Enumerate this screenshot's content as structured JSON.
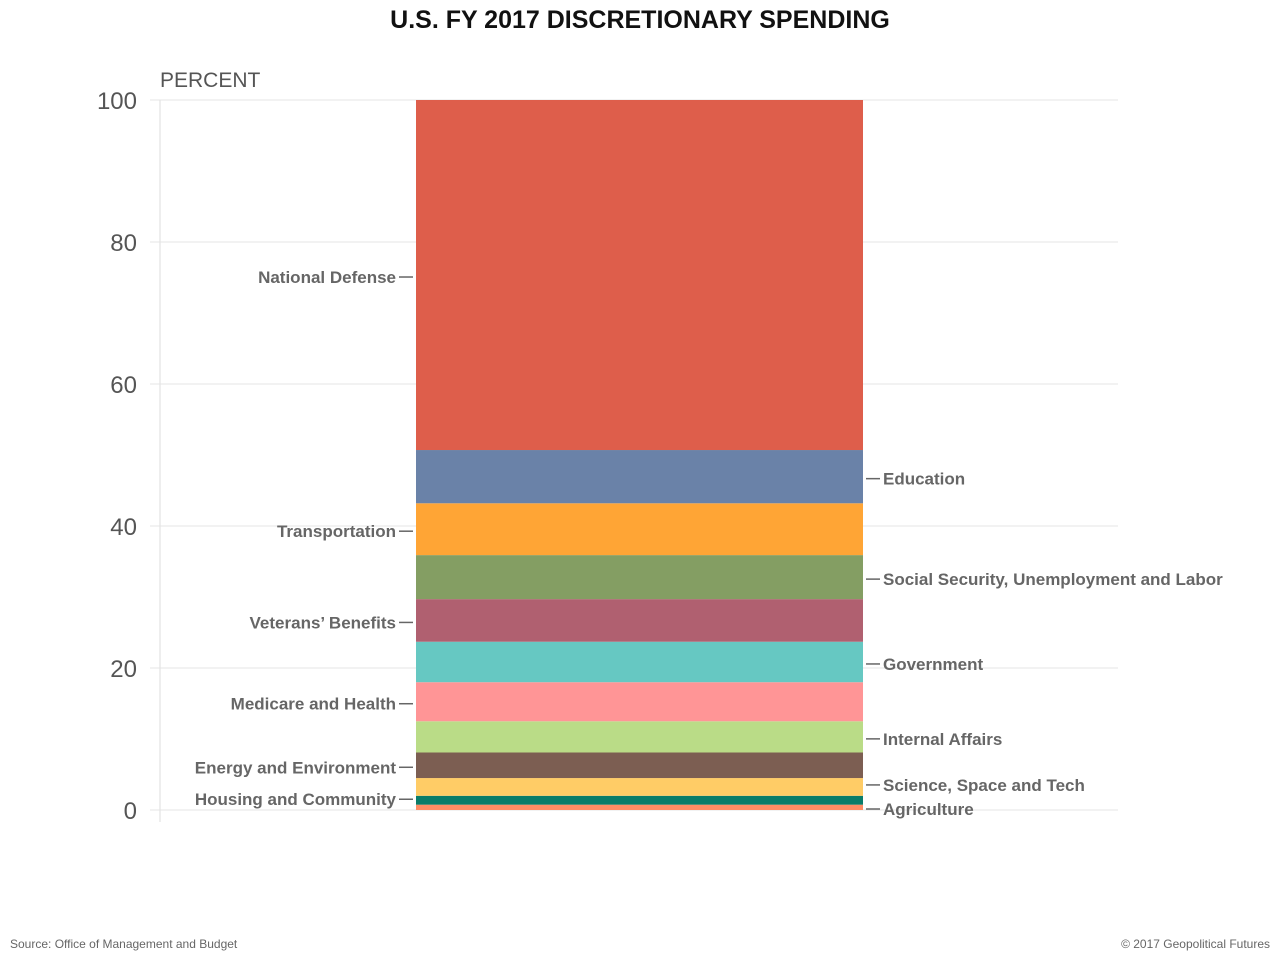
{
  "chart_data": {
    "type": "bar",
    "stacked": true,
    "title": "U.S. FY 2017 DISCRETIONARY SPENDING",
    "ylabel": "PERCENT",
    "xlabel": "",
    "ylim": [
      0,
      100
    ],
    "yticks": [
      0,
      20,
      40,
      60,
      80,
      100
    ],
    "grid": true,
    "series": [
      {
        "name": "Agriculture",
        "value": 0.75,
        "color": "#ff8c64",
        "side": "right"
      },
      {
        "name": "Housing and Community",
        "value": 1.25,
        "color": "#0a7c69",
        "side": "left"
      },
      {
        "name": "Science, Space and Tech",
        "value": 2.5,
        "color": "#ffcc66",
        "side": "right"
      },
      {
        "name": "Energy and Environment",
        "value": 3.6,
        "color": "#7c5e52",
        "side": "left"
      },
      {
        "name": "Internal Affairs",
        "value": 4.4,
        "color": "#badc87",
        "side": "right"
      },
      {
        "name": "Medicare and Health",
        "value": 5.5,
        "color": "#ff9596",
        "side": "left"
      },
      {
        "name": "Government",
        "value": 5.7,
        "color": "#66c8c2",
        "side": "right"
      },
      {
        "name": "Veterans’ Benefits",
        "value": 6.0,
        "color": "#b06070",
        "side": "left"
      },
      {
        "name": "Social Security, Unemployment and Labor",
        "value": 6.2,
        "color": "#849e63",
        "side": "right"
      },
      {
        "name": "Transportation",
        "value": 7.3,
        "color": "#ffa535",
        "side": "left"
      },
      {
        "name": "Education",
        "value": 7.5,
        "color": "#6a82a8",
        "side": "right"
      },
      {
        "name": "National Defense",
        "value": 49.3,
        "color": "#de5e4b",
        "side": "left"
      }
    ]
  },
  "footer": {
    "source": "Source: Office of Management and Budget",
    "copyright": "© 2017 Geopolitical Futures"
  }
}
